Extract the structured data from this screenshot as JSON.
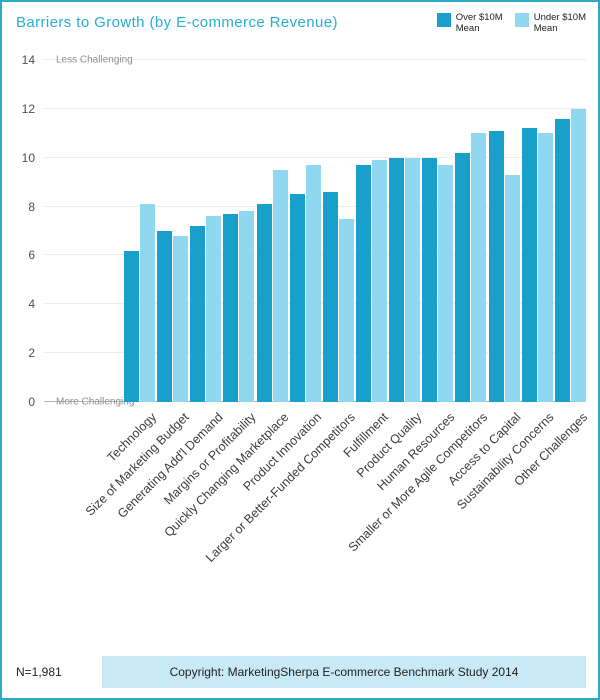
{
  "title": "Barriers to Growth (by E-commerce Revenue)",
  "colors": {
    "title": "#29aed3",
    "border": "#2aa9c9",
    "footer_bg": "#c8e9f6",
    "over_10m": "#189fca",
    "under_10m": "#90d7f0"
  },
  "legend": [
    {
      "label": "Over $10M",
      "sublabel": "Mean",
      "color": "#189fca"
    },
    {
      "label": "Under $10M",
      "sublabel": "Mean",
      "color": "#90d7f0"
    }
  ],
  "chart_data": {
    "type": "bar",
    "title": "Barriers to Growth (by E-commerce Revenue)",
    "categories": [
      "Technology",
      "Size of Marketing Budget",
      "Generating Add'l Demand",
      "Margins or Profitability",
      "Quickly Changing Marketplace",
      "Product Innovation",
      "Larger or Better-Funded Competitors",
      "Fulfillment",
      "Product Quality",
      "Human Resources",
      "Smaller or More Agile Competitors",
      "Access to Capital",
      "Sustainability Concerns",
      "Other Challenges"
    ],
    "series": [
      {
        "name": "Over $10M Mean",
        "color": "#189fca",
        "values": [
          6.2,
          7.0,
          7.2,
          7.7,
          8.1,
          8.5,
          8.6,
          9.7,
          10.0,
          10.0,
          10.2,
          11.1,
          11.2,
          11.6
        ]
      },
      {
        "name": "Under $10M Mean",
        "color": "#90d7f0",
        "values": [
          8.1,
          6.8,
          7.6,
          7.8,
          9.5,
          9.7,
          7.5,
          9.9,
          10.0,
          9.7,
          11.0,
          9.3,
          11.0,
          12.0
        ]
      }
    ],
    "ylim": [
      0,
      14
    ],
    "yticks": [
      0,
      2,
      4,
      6,
      8,
      10,
      12,
      14
    ],
    "annotations": {
      "top": "Less Challenging",
      "bottom": "More Challenging"
    },
    "grid": true,
    "legend_position": "top-right"
  },
  "footer": {
    "n_label": "N=1,981",
    "copyright": "Copyright: MarketingSherpa E-commerce Benchmark Study 2014"
  }
}
